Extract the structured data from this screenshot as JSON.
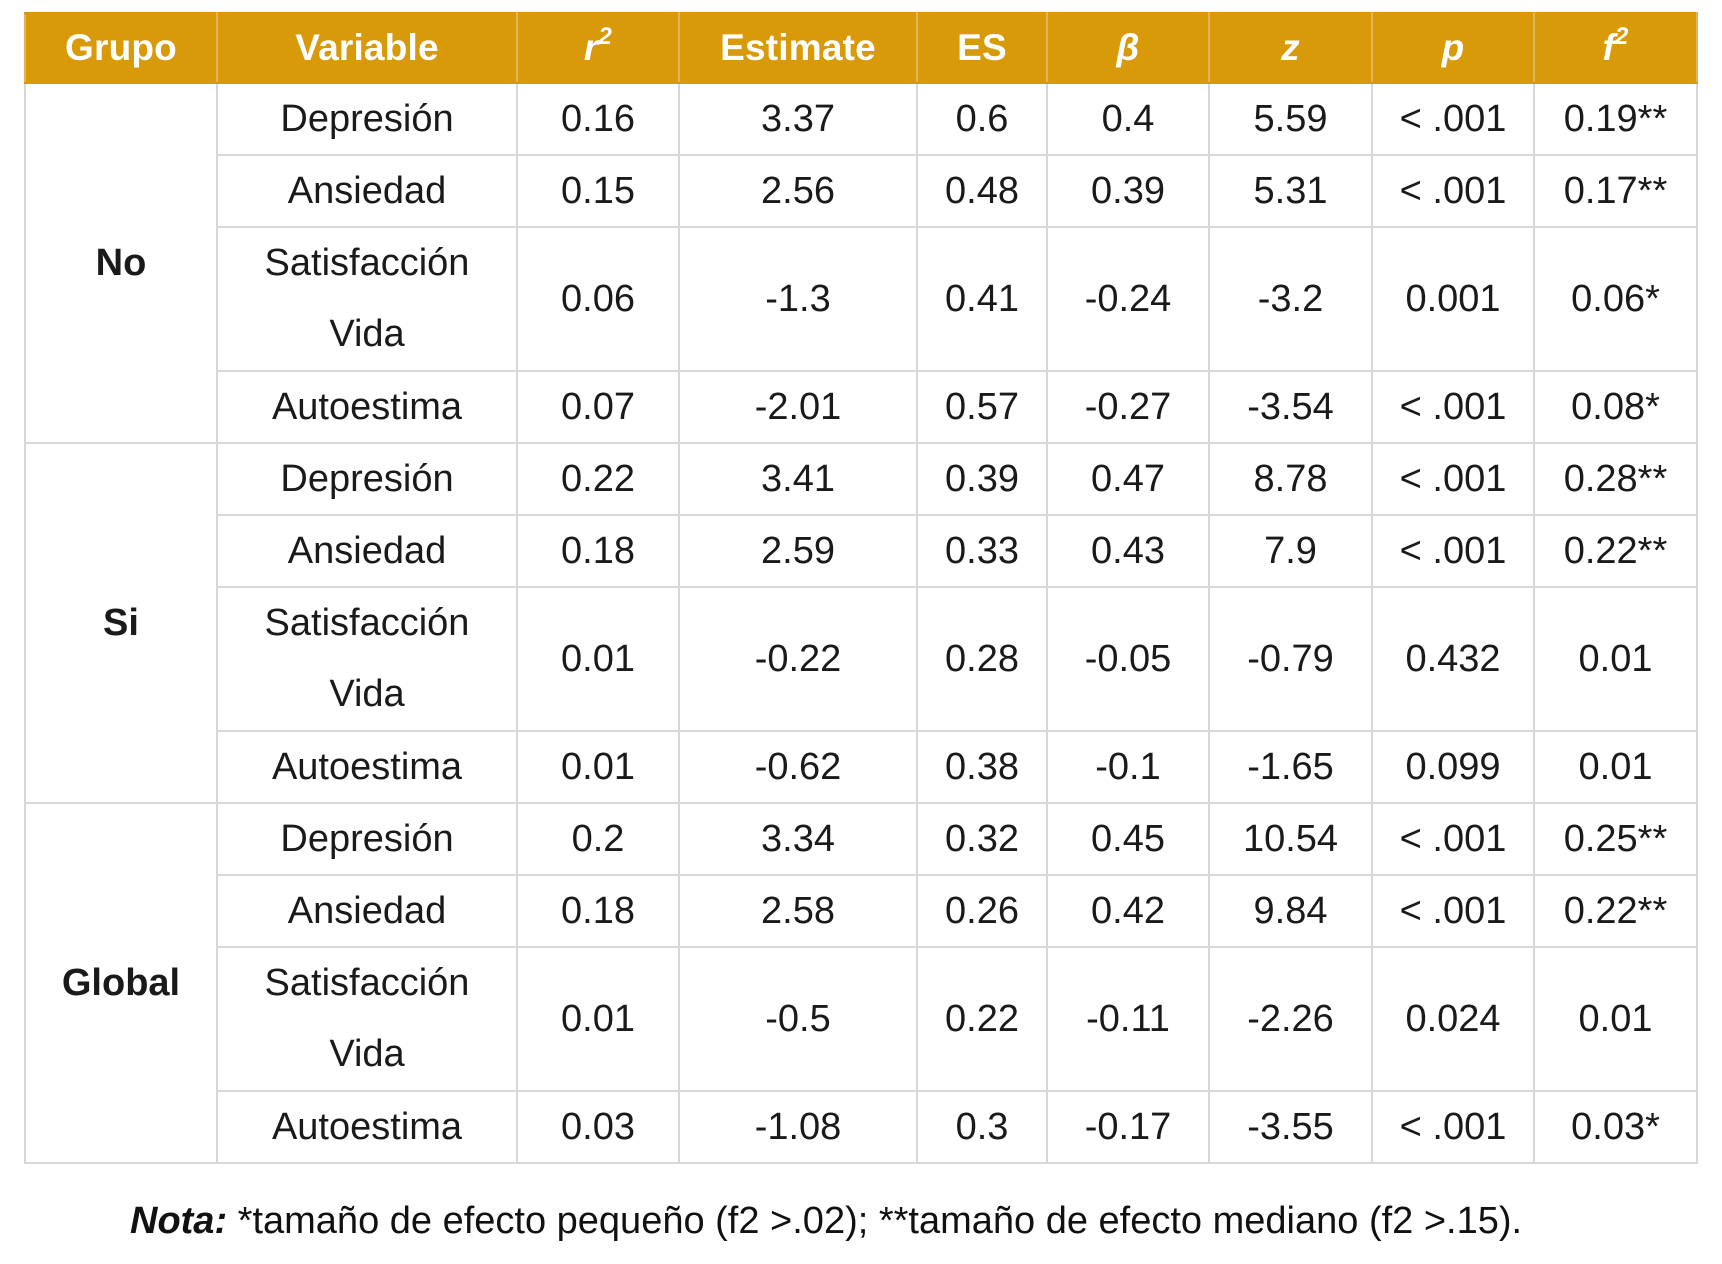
{
  "headers": {
    "grupo": "Grupo",
    "variable": "Variable",
    "r2": {
      "base": "r",
      "sup": "2"
    },
    "estimate": "Estimate",
    "es": "ES",
    "beta": "β",
    "z": "z",
    "p": "p",
    "f2": {
      "base": "f",
      "sup": "2"
    }
  },
  "groups": [
    {
      "name": "No",
      "rows": [
        {
          "variable": [
            "Depresión"
          ],
          "r2": "0.16",
          "estimate": "3.37",
          "es": "0.6",
          "beta": "0.4",
          "z": "5.59",
          "p": "< .001",
          "f2": "0.19**"
        },
        {
          "variable": [
            "Ansiedad"
          ],
          "r2": "0.15",
          "estimate": "2.56",
          "es": "0.48",
          "beta": "0.39",
          "z": "5.31",
          "p": "< .001",
          "f2": "0.17**"
        },
        {
          "variable": [
            "Satisfacción",
            "Vida"
          ],
          "r2": "0.06",
          "estimate": "-1.3",
          "es": "0.41",
          "beta": "-0.24",
          "z": "-3.2",
          "p": "0.001",
          "f2": "0.06*"
        },
        {
          "variable": [
            "Autoestima"
          ],
          "r2": "0.07",
          "estimate": "-2.01",
          "es": "0.57",
          "beta": "-0.27",
          "z": "-3.54",
          "p": "< .001",
          "f2": "0.08*"
        }
      ]
    },
    {
      "name": "Si",
      "rows": [
        {
          "variable": [
            "Depresión"
          ],
          "r2": "0.22",
          "estimate": "3.41",
          "es": "0.39",
          "beta": "0.47",
          "z": "8.78",
          "p": "< .001",
          "f2": "0.28**"
        },
        {
          "variable": [
            "Ansiedad"
          ],
          "r2": "0.18",
          "estimate": "2.59",
          "es": "0.33",
          "beta": "0.43",
          "z": "7.9",
          "p": "< .001",
          "f2": "0.22**"
        },
        {
          "variable": [
            "Satisfacción",
            "Vida"
          ],
          "r2": "0.01",
          "estimate": "-0.22",
          "es": "0.28",
          "beta": "-0.05",
          "z": "-0.79",
          "p": "0.432",
          "f2": "0.01"
        },
        {
          "variable": [
            "Autoestima"
          ],
          "r2": "0.01",
          "estimate": "-0.62",
          "es": "0.38",
          "beta": "-0.1",
          "z": "-1.65",
          "p": "0.099",
          "f2": "0.01"
        }
      ]
    },
    {
      "name": "Global",
      "rows": [
        {
          "variable": [
            "Depresión"
          ],
          "r2": "0.2",
          "estimate": "3.34",
          "es": "0.32",
          "beta": "0.45",
          "z": "10.54",
          "p": "< .001",
          "f2": "0.25**"
        },
        {
          "variable": [
            "Ansiedad"
          ],
          "r2": "0.18",
          "estimate": "2.58",
          "es": "0.26",
          "beta": "0.42",
          "z": "9.84",
          "p": "< .001",
          "f2": "0.22**"
        },
        {
          "variable": [
            "Satisfacción",
            "Vida"
          ],
          "r2": "0.01",
          "estimate": "-0.5",
          "es": "0.22",
          "beta": "-0.11",
          "z": "-2.26",
          "p": "0.024",
          "f2": "0.01"
        },
        {
          "variable": [
            "Autoestima"
          ],
          "r2": "0.03",
          "estimate": "-1.08",
          "es": "0.3",
          "beta": "-0.17",
          "z": "-3.55",
          "p": "< .001",
          "f2": "0.03*"
        }
      ]
    }
  ],
  "note": {
    "label": "Nota:",
    "text": " *tamaño de efecto pequeño (f2 >.02); **tamaño de efecto mediano (f2 >.15)."
  },
  "colors": {
    "header_bg": "#d89a08",
    "header_text": "#ffffff",
    "border": "#d7d7d7"
  }
}
